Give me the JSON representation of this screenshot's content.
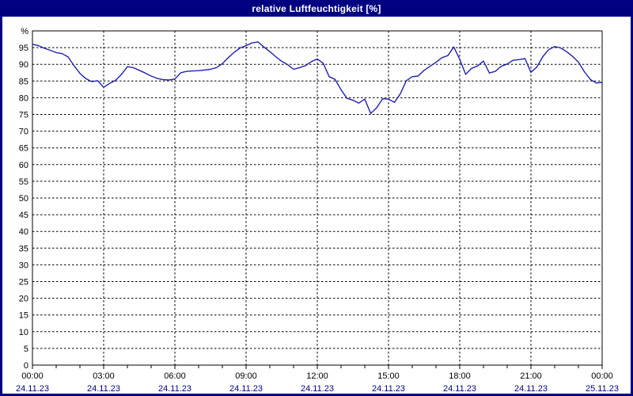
{
  "window": {
    "title": "relative Luftfeuchtigkeit [%]",
    "titlebar_bg": "#000080",
    "title_color": "#ffffff",
    "background": "#ffffff",
    "border_color": "#000080"
  },
  "axis": {
    "frame_color": "#000000",
    "grid_color": "#000000",
    "ytick_label_color": "#000000",
    "time_label_color": "#000000",
    "date_label_color": "#000080"
  },
  "chart_data": {
    "type": "line",
    "title": "relative Luftfeuchtigkeit [%]",
    "ylabel": "%",
    "ylim": [
      0,
      100
    ],
    "ytick_step": 5,
    "grid": "dashed",
    "legend": "none",
    "x_range_hours": 24,
    "minor_xtick_interval_hours": 1,
    "major_xtick_interval_hours": 3,
    "x_ticks": [
      {
        "time": "00:00",
        "date": "24.11.23"
      },
      {
        "time": "03:00",
        "date": "24.11.23"
      },
      {
        "time": "06:00",
        "date": "24.11.23"
      },
      {
        "time": "09:00",
        "date": "24.11.23"
      },
      {
        "time": "12:00",
        "date": "24.11.23"
      },
      {
        "time": "15:00",
        "date": "24.11.23"
      },
      {
        "time": "18:00",
        "date": "24.11.23"
      },
      {
        "time": "21:00",
        "date": "24.11.23"
      },
      {
        "time": "00:00",
        "date": "25.11.23"
      }
    ],
    "series": [
      {
        "name": "relative Luftfeuchtigkeit",
        "unit": "%",
        "color": "#2121ad",
        "start_time": "00:00",
        "interval_minutes": 15,
        "values": [
          96.0,
          95.6,
          94.8,
          94.2,
          93.5,
          93.2,
          92.2,
          89.6,
          87.3,
          85.7,
          84.8,
          85.1,
          83.1,
          84.3,
          85.2,
          87.0,
          89.3,
          89.0,
          88.2,
          87.4,
          86.5,
          85.8,
          85.4,
          85.3,
          85.6,
          87.5,
          87.9,
          88.0,
          88.1,
          88.3,
          88.5,
          89.0,
          90.2,
          92.0,
          93.6,
          94.9,
          95.6,
          96.4,
          96.7,
          95.2,
          93.8,
          92.3,
          90.9,
          89.9,
          88.5,
          89.0,
          89.6,
          90.8,
          91.6,
          90.3,
          86.3,
          85.5,
          82.4,
          79.8,
          79.3,
          78.4,
          79.6,
          75.3,
          77.0,
          79.7,
          79.6,
          78.6,
          81.2,
          85.1,
          86.3,
          86.5,
          88.2,
          89.4,
          90.6,
          92.0,
          92.6,
          95.2,
          91.5,
          87.0,
          88.8,
          89.5,
          91.0,
          87.4,
          87.9,
          89.4,
          90.1,
          91.2,
          91.4,
          91.7,
          87.6,
          89.2,
          92.3,
          94.4,
          95.3,
          94.9,
          93.8,
          92.4,
          90.7,
          87.8,
          85.5,
          84.4,
          84.6
        ]
      }
    ]
  }
}
